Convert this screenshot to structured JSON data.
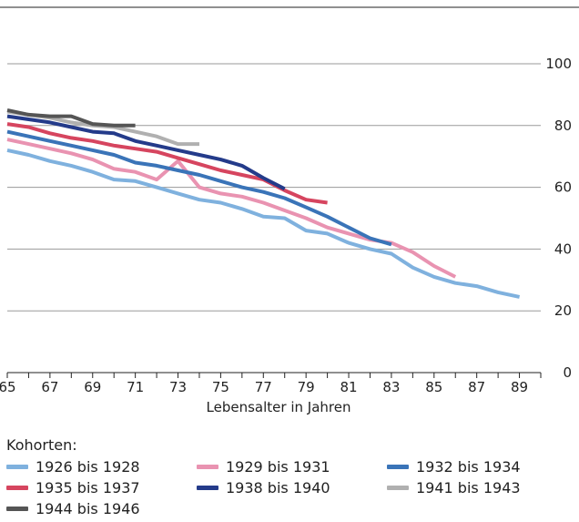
{
  "chart_data": {
    "type": "line",
    "title": "",
    "xlabel": "Lebensalter in Jahren",
    "ylabel": "",
    "xlim": [
      65,
      90
    ],
    "ylim": [
      0,
      100
    ],
    "x_ticks": [
      65,
      66,
      67,
      68,
      69,
      70,
      71,
      72,
      73,
      74,
      75,
      76,
      77,
      78,
      79,
      80,
      81,
      82,
      83,
      84,
      85,
      86,
      87,
      88,
      89,
      90
    ],
    "x_tick_labels": [
      "65",
      "67",
      "69",
      "71",
      "73",
      "75",
      "77",
      "79",
      "81",
      "83",
      "85",
      "87",
      "89"
    ],
    "y_ticks": [
      0,
      20,
      40,
      60,
      80,
      100
    ],
    "y_tick_labels": [
      "0",
      "20",
      "40",
      "60",
      "80",
      "100"
    ],
    "grid": "horizontal",
    "legend_title": "Kohorten:",
    "legend_position": "bottom",
    "series": [
      {
        "name": "1926 bis 1928",
        "color": "#7fb1de",
        "x": [
          65,
          66,
          67,
          68,
          69,
          70,
          71,
          72,
          73,
          74,
          75,
          76,
          77,
          78,
          79,
          80,
          81,
          82,
          83,
          84,
          85,
          86,
          87,
          88,
          89
        ],
        "y": [
          72,
          70.5,
          68.5,
          67,
          65,
          62.5,
          62,
          60,
          58,
          56,
          55,
          53,
          50.5,
          50,
          46,
          45,
          42,
          40,
          38.5,
          34,
          31,
          29,
          28,
          26,
          24.5
        ]
      },
      {
        "name": "1929 bis 1931",
        "color": "#e993b1",
        "x": [
          65,
          66,
          67,
          68,
          69,
          70,
          71,
          72,
          73,
          74,
          75,
          76,
          77,
          78,
          79,
          80,
          81,
          82,
          83,
          84,
          85,
          86
        ],
        "y": [
          75.5,
          74,
          72.5,
          71,
          69,
          66,
          65,
          62.5,
          68.5,
          60,
          58,
          57,
          55,
          52.5,
          50,
          47,
          45,
          43,
          42,
          39,
          34.5,
          31
        ]
      },
      {
        "name": "1932 bis 1934",
        "color": "#3a74b8",
        "x": [
          65,
          66,
          67,
          68,
          69,
          70,
          71,
          72,
          73,
          74,
          75,
          76,
          77,
          78,
          79,
          80,
          81,
          82,
          83
        ],
        "y": [
          78,
          76.5,
          75,
          73.5,
          72,
          70.5,
          68,
          67,
          65.5,
          64,
          62,
          60,
          58.5,
          56.5,
          53.5,
          50.5,
          47,
          43.5,
          41.5
        ]
      },
      {
        "name": "1935 bis 1937",
        "color": "#d6455f",
        "x": [
          65,
          66,
          67,
          68,
          69,
          70,
          71,
          72,
          73,
          74,
          75,
          76,
          77,
          78,
          79,
          80
        ],
        "y": [
          80.5,
          79.5,
          77.5,
          76,
          75,
          73.5,
          72.5,
          71.5,
          69.5,
          67.5,
          65.5,
          64,
          62.5,
          59,
          56,
          55
        ]
      },
      {
        "name": "1938 bis 1940",
        "color": "#243b8a",
        "x": [
          65,
          66,
          67,
          68,
          69,
          70,
          71,
          72,
          73,
          74,
          75,
          76,
          77,
          78
        ],
        "y": [
          83,
          82,
          81,
          79.5,
          78,
          77.5,
          75,
          73.5,
          72,
          70.5,
          69,
          67,
          63,
          59.5
        ]
      },
      {
        "name": "1941 bis 1943",
        "color": "#b0b0b0",
        "x": [
          65,
          66,
          67,
          68,
          69,
          70,
          71,
          72,
          73,
          74
        ],
        "y": [
          84.5,
          83.5,
          82.5,
          81,
          80,
          79.5,
          78,
          76.5,
          74,
          74
        ]
      },
      {
        "name": "1944 bis 1946",
        "color": "#555555",
        "x": [
          65,
          66,
          67,
          68,
          69,
          70,
          71
        ],
        "y": [
          85,
          83.5,
          83,
          83,
          80.5,
          80,
          80
        ]
      }
    ]
  }
}
